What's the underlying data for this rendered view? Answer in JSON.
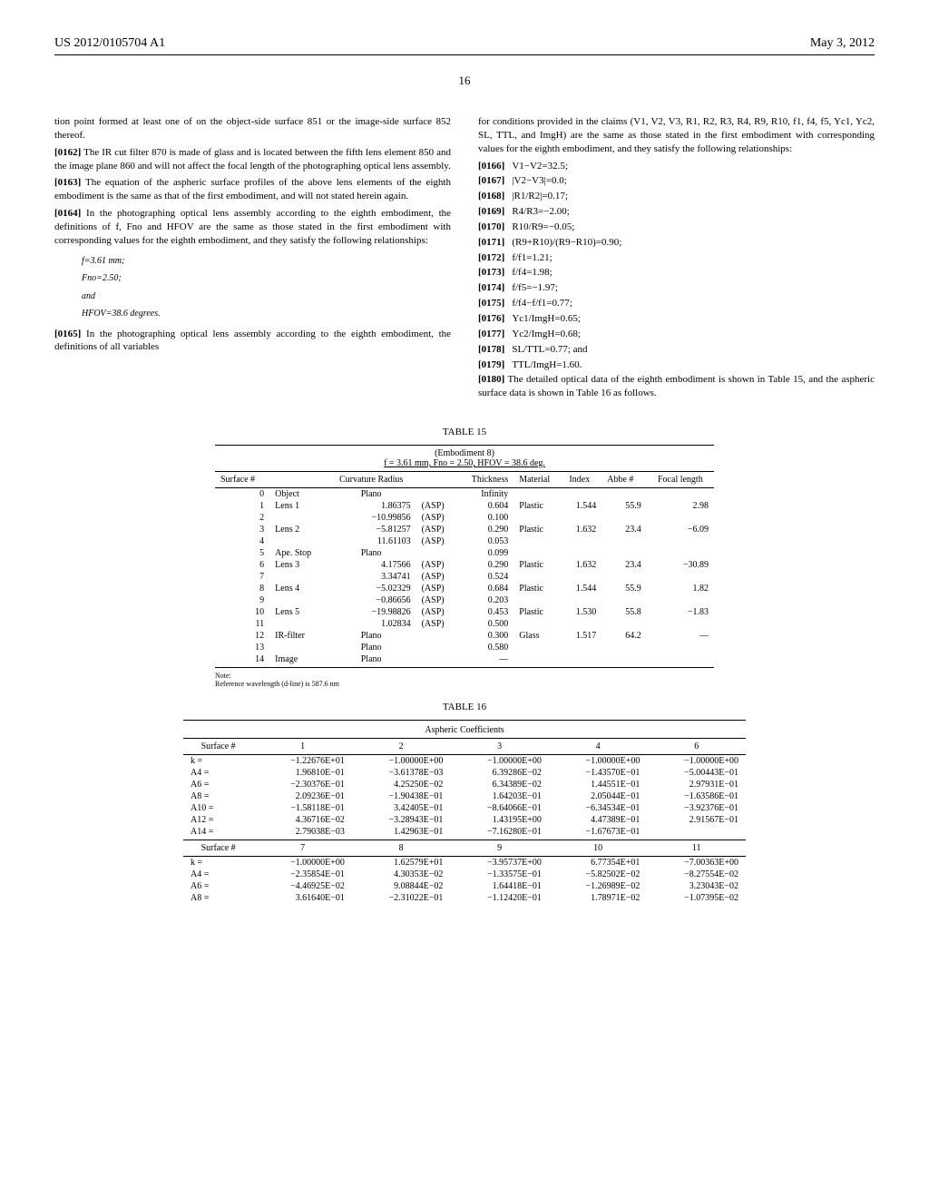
{
  "header": {
    "left": "US 2012/0105704 A1",
    "right": "May 3, 2012"
  },
  "page_number": "16",
  "left_col": {
    "p1": {
      "text": "tion point formed at least one of on the object-side surface 851 or the image-side surface 852 thereof."
    },
    "p2": {
      "num": "[0162]",
      "text": "The IR cut filter 870 is made of glass and is located between the fifth lens element 850 and the image plane 860 and will not affect the focal length of the photographing optical lens assembly."
    },
    "p3": {
      "num": "[0163]",
      "text": "The equation of the aspheric surface profiles of the above lens elements of the eighth embodiment is the same as that of the first embodiment, and will not stated herein again."
    },
    "p4": {
      "num": "[0164]",
      "text": "In the photographing optical lens assembly according to the eighth embodiment, the definitions of f, Fno and HFOV are the same as those stated in the first embodiment with corresponding values for the eighth embodiment, and they satisfy the following relationships:"
    },
    "eq1": "f=3.61 mm;",
    "eq2": "Fno=2.50;",
    "eq3": "and",
    "eq4": "HFOV=38.6 degrees.",
    "p5": {
      "num": "[0165]",
      "text": "In the photographing optical lens assembly according to the eighth embodiment, the definitions of all variables"
    }
  },
  "right_col": {
    "p1": {
      "text": "for conditions provided in the claims (V1, V2, V3, R1, R2, R3, R4, R9, R10, f1, f4, f5, Yc1, Yc2, SL, TTL, and ImgH) are the same as those stated in the first embodiment with corresponding values for the eighth embodiment, and they satisfy the following relationships:"
    },
    "rels": [
      {
        "n": "[0166]",
        "v": "V1−V2=32.5;"
      },
      {
        "n": "[0167]",
        "v": "|V2−V3|=0.0;"
      },
      {
        "n": "[0168]",
        "v": "|R1/R2|=0.17;"
      },
      {
        "n": "[0169]",
        "v": "R4/R3=−2.00;"
      },
      {
        "n": "[0170]",
        "v": "R10/R9=−0.05;"
      },
      {
        "n": "[0171]",
        "v": "(R9+R10)/(R9−R10)=0.90;"
      },
      {
        "n": "[0172]",
        "v": "f/f1=1.21;"
      },
      {
        "n": "[0173]",
        "v": "f/f4=1.98;"
      },
      {
        "n": "[0174]",
        "v": "f/f5=−1.97;"
      },
      {
        "n": "[0175]",
        "v": "f/f4−f/f1=0.77;"
      },
      {
        "n": "[0176]",
        "v": "Yc1/ImgH=0.65;"
      },
      {
        "n": "[0177]",
        "v": "Yc2/ImgH=0.68;"
      },
      {
        "n": "[0178]",
        "v": "SL/TTL=0.77; and"
      },
      {
        "n": "[0179]",
        "v": "TTL/ImgH=1.60."
      }
    ],
    "p2": {
      "num": "[0180]",
      "text": "The detailed optical data of the eighth embodiment is shown in Table 15, and the aspheric surface data is shown in Table 16 as follows."
    }
  },
  "table15": {
    "caption": "TABLE 15",
    "subtitle1": "(Embodiment 8)",
    "subtitle2": "f = 3.61 mm, Fno = 2.50, HFOV = 38.6 deg.",
    "headers": [
      "Surface #",
      "",
      "Curvature Radius",
      "",
      "Thickness",
      "Material",
      "Index",
      "Abbe #",
      "Focal length"
    ],
    "rows": [
      [
        "0",
        "Object",
        "Plano",
        "",
        "Infinity",
        "",
        "",
        "",
        ""
      ],
      [
        "1",
        "Lens 1",
        "1.86375",
        "(ASP)",
        "0.604",
        "Plastic",
        "1.544",
        "55.9",
        "2.98"
      ],
      [
        "2",
        "",
        "−10.99856",
        "(ASP)",
        "0.100",
        "",
        "",
        "",
        ""
      ],
      [
        "3",
        "Lens 2",
        "−5.81257",
        "(ASP)",
        "0.290",
        "Plastic",
        "1.632",
        "23.4",
        "−6.09"
      ],
      [
        "4",
        "",
        "11.61103",
        "(ASP)",
        "0.053",
        "",
        "",
        "",
        ""
      ],
      [
        "5",
        "Ape. Stop",
        "Plano",
        "",
        "0.099",
        "",
        "",
        "",
        ""
      ],
      [
        "6",
        "Lens 3",
        "4.17566",
        "(ASP)",
        "0.290",
        "Plastic",
        "1.632",
        "23.4",
        "−30.89"
      ],
      [
        "7",
        "",
        "3.34741",
        "(ASP)",
        "0.524",
        "",
        "",
        "",
        ""
      ],
      [
        "8",
        "Lens 4",
        "−5.02329",
        "(ASP)",
        "0.684",
        "Plastic",
        "1.544",
        "55.9",
        "1.82"
      ],
      [
        "9",
        "",
        "−0.86656",
        "(ASP)",
        "0.203",
        "",
        "",
        "",
        ""
      ],
      [
        "10",
        "Lens 5",
        "−19.98826",
        "(ASP)",
        "0.453",
        "Plastic",
        "1.530",
        "55.8",
        "−1.83"
      ],
      [
        "11",
        "",
        "1.02834",
        "(ASP)",
        "0.500",
        "",
        "",
        "",
        ""
      ],
      [
        "12",
        "IR-filter",
        "Plano",
        "",
        "0.300",
        "Glass",
        "1.517",
        "64.2",
        "—"
      ],
      [
        "13",
        "",
        "Plano",
        "",
        "0.580",
        "",
        "",
        "",
        ""
      ],
      [
        "14",
        "Image",
        "Plano",
        "",
        "—",
        "",
        "",
        "",
        ""
      ]
    ],
    "note1": "Note:",
    "note2": "Reference wavelength (d-line) is 587.6 nm"
  },
  "table16": {
    "caption": "TABLE 16",
    "subtitle": "Aspheric Coefficients",
    "h1": [
      "Surface #",
      "1",
      "2",
      "3",
      "4",
      "6"
    ],
    "b1": [
      [
        "k =",
        "−1.22676E+01",
        "−1.00000E+00",
        "−1.00000E+00",
        "−1.00000E+00",
        "−1.00000E+00"
      ],
      [
        "A4 =",
        "1.96810E−01",
        "−3.61378E−03",
        "6.39286E−02",
        "−1.43570E−01",
        "−5.00443E−01"
      ],
      [
        "A6 =",
        "−2.30376E−01",
        "4.25250E−02",
        "6.34389E−02",
        "1.44551E−01",
        "2.97931E−01"
      ],
      [
        "A8 =",
        "2.09236E−01",
        "−1.90438E−01",
        "1.64203E−01",
        "2.05044E−01",
        "−1.63586E−01"
      ],
      [
        "A10 =",
        "−1.58118E−01",
        "3.42405E−01",
        "−8.64066E−01",
        "−6.34534E−01",
        "−3.92376E−01"
      ],
      [
        "A12 =",
        "4.36716E−02",
        "−3.28943E−01",
        "1.43195E+00",
        "4.47389E−01",
        "2.91567E−01"
      ],
      [
        "A14 =",
        "2.79038E−03",
        "1.42963E−01",
        "−7.16280E−01",
        "−1.67673E−01",
        ""
      ]
    ],
    "h2": [
      "Surface #",
      "7",
      "8",
      "9",
      "10",
      "11"
    ],
    "b2": [
      [
        "k =",
        "−1.00000E+00",
        "1.62579E+01",
        "−3.95737E+00",
        "6.77354E+01",
        "−7.00363E+00"
      ],
      [
        "A4 =",
        "−2.35854E−01",
        "4.30353E−02",
        "−1.33575E−01",
        "−5.82502E−02",
        "−8.27554E−02"
      ],
      [
        "A6 =",
        "−4.46925E−02",
        "9.08844E−02",
        "1.64418E−01",
        "−1.26989E−02",
        "3.23043E−02"
      ],
      [
        "A8 =",
        "3.61640E−01",
        "−2.31022E−01",
        "−1.12420E−01",
        "1.78971E−02",
        "−1.07395E−02"
      ]
    ]
  }
}
